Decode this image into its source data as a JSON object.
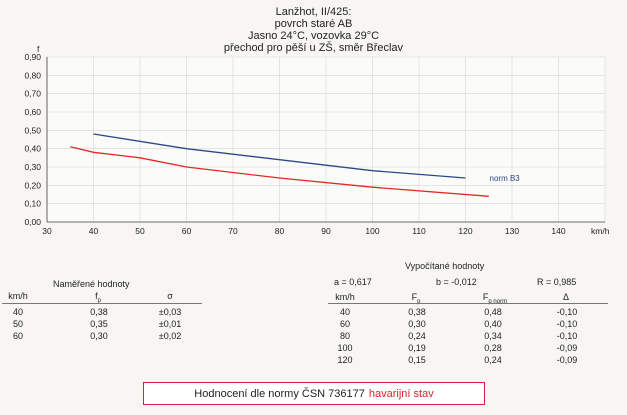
{
  "header": {
    "line1": "Lanžhot, II/425:",
    "line2": "povrch staré AB",
    "line3": "Jasno 24°C,  vozovka 29°C",
    "line4": "přechod pro pěší u ZŠ, směr Břeclav"
  },
  "chart_data": {
    "type": "line",
    "ylabel": "f",
    "xlabel": "km/h",
    "xlim": [
      30,
      150
    ],
    "ylim": [
      0.0,
      0.9
    ],
    "x_ticks": [
      30,
      40,
      50,
      60,
      70,
      80,
      90,
      100,
      110,
      120,
      130,
      140,
      150
    ],
    "y_ticks": [
      "0,00",
      "0,10",
      "0,20",
      "0,30",
      "0,40",
      "0,50",
      "0,60",
      "0,70",
      "0,80",
      "0,90"
    ],
    "grid": true,
    "series": [
      {
        "name": "norm B3",
        "color": "#2a4a86",
        "x": [
          40,
          60,
          80,
          100,
          120
        ],
        "y": [
          0.48,
          0.4,
          0.34,
          0.28,
          0.24
        ]
      },
      {
        "name": "",
        "color": "#e02a22",
        "x": [
          35,
          40,
          50,
          60,
          80,
          100,
          125
        ],
        "y": [
          0.41,
          0.38,
          0.35,
          0.3,
          0.24,
          0.19,
          0.14
        ]
      }
    ]
  },
  "measured": {
    "title": "Naměřené hodnoty",
    "headers": {
      "speed": "km/h",
      "fp": "f",
      "fp_sub": "p",
      "sigma": "σ"
    },
    "rows": [
      [
        "40",
        "0,38",
        "±0,03"
      ],
      [
        "50",
        "0,35",
        "±0,01"
      ],
      [
        "60",
        "0,30",
        "±0,02"
      ]
    ]
  },
  "computed": {
    "title": "Vypočítané hodnoty",
    "params": {
      "a": "a = 0,617",
      "b": "b = -0,012",
      "r": "R = 0,985"
    },
    "headers": {
      "speed": "km/h",
      "fp": "F",
      "fp_sub": "p",
      "fpn": "F",
      "fpn_sub": "p norm",
      "delta": "Δ"
    },
    "rows": [
      [
        "40",
        "0,38",
        "0,48",
        "-0,10"
      ],
      [
        "60",
        "0,30",
        "0,40",
        "-0,10"
      ],
      [
        "80",
        "0,24",
        "0,34",
        "-0,10"
      ],
      [
        "100",
        "0,19",
        "0,28",
        "-0,09"
      ],
      [
        "120",
        "0,15",
        "0,24",
        "-0,09"
      ]
    ]
  },
  "rating": {
    "label": "Hodnocení dle normy ČSN 736177",
    "value": "havarijní stav"
  }
}
